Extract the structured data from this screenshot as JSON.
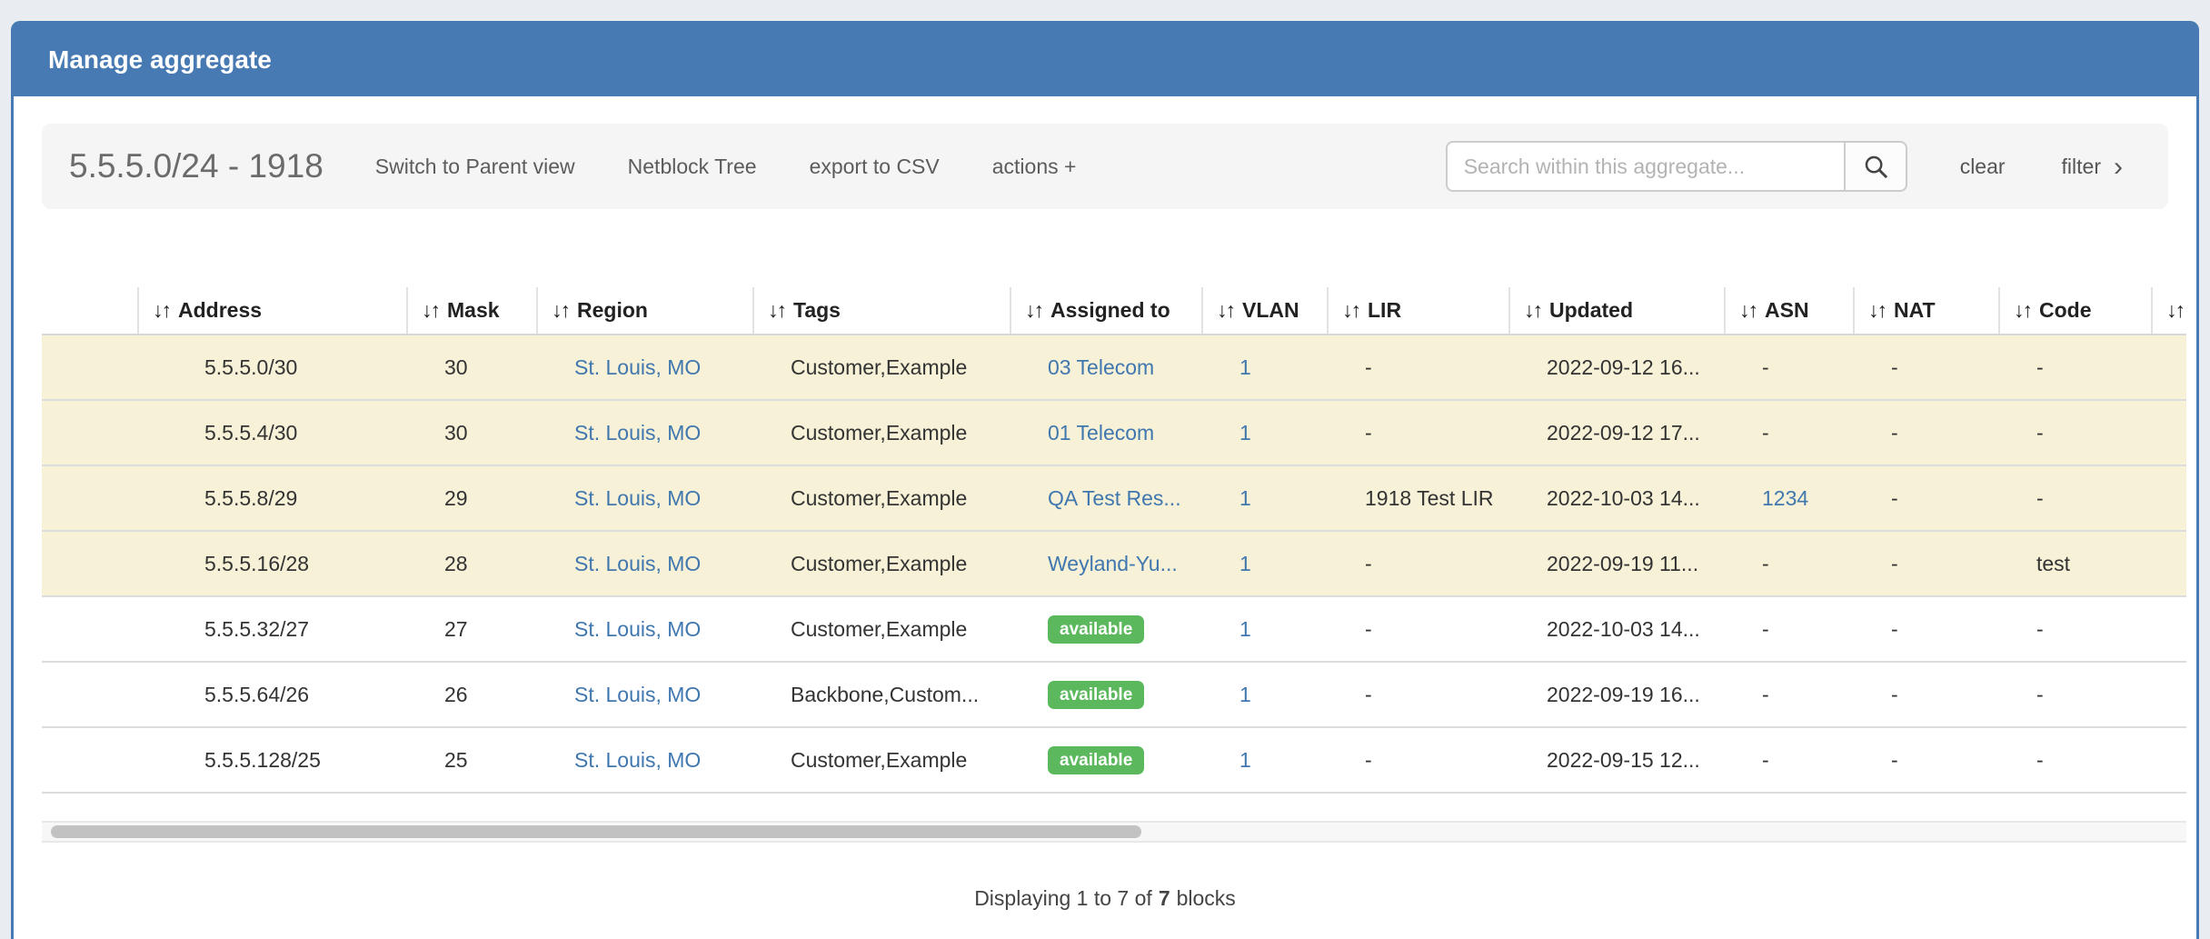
{
  "panel": {
    "title": "Manage aggregate"
  },
  "toolbar": {
    "aggregate_label": "5.5.5.0/24 - 1918",
    "links": [
      {
        "key": "switch-to-parent-view",
        "label": "Switch to Parent view"
      },
      {
        "key": "netblock-tree",
        "label": "Netblock Tree"
      },
      {
        "key": "export-to-csv",
        "label": "export to CSV"
      },
      {
        "key": "actions",
        "label": "actions +"
      }
    ],
    "search": {
      "placeholder": "Search within this aggregate...",
      "value": ""
    },
    "clear_label": "clear",
    "filter_label": "filter",
    "filter_chevron": "›"
  },
  "table": {
    "sort_icon": "↓↑",
    "columns": [
      {
        "key": "select",
        "label": "",
        "sortable": false
      },
      {
        "key": "address",
        "label": "Address",
        "sortable": true
      },
      {
        "key": "mask",
        "label": "Mask",
        "sortable": true
      },
      {
        "key": "region",
        "label": "Region",
        "sortable": true
      },
      {
        "key": "tags",
        "label": "Tags",
        "sortable": true
      },
      {
        "key": "assigned",
        "label": "Assigned to",
        "sortable": true
      },
      {
        "key": "vlan",
        "label": "VLAN",
        "sortable": true
      },
      {
        "key": "lir",
        "label": "LIR",
        "sortable": true
      },
      {
        "key": "updated",
        "label": "Updated",
        "sortable": true
      },
      {
        "key": "asn",
        "label": "ASN",
        "sortable": true
      },
      {
        "key": "nat",
        "label": "NAT",
        "sortable": true
      },
      {
        "key": "code",
        "label": "Code",
        "sortable": true
      },
      {
        "key": "overflow",
        "label": "",
        "sortable": true
      }
    ],
    "rows": [
      {
        "address": "5.5.5.0/30",
        "mask": "30",
        "region": "St. Louis, MO",
        "tags": "Customer,Example",
        "assigned": "03 Telecom",
        "assigned_type": "link",
        "vlan": "1",
        "lir": "-",
        "updated": "2022-09-12 16...",
        "asn": "-",
        "asn_type": "text",
        "nat": "-",
        "code": "-",
        "highlighted": true
      },
      {
        "address": "5.5.5.4/30",
        "mask": "30",
        "region": "St. Louis, MO",
        "tags": "Customer,Example",
        "assigned": "01 Telecom",
        "assigned_type": "link",
        "vlan": "1",
        "lir": "-",
        "updated": "2022-09-12 17...",
        "asn": "-",
        "asn_type": "text",
        "nat": "-",
        "code": "-",
        "highlighted": true
      },
      {
        "address": "5.5.5.8/29",
        "mask": "29",
        "region": "St. Louis, MO",
        "tags": "Customer,Example",
        "assigned": "QA Test Res...",
        "assigned_type": "link",
        "vlan": "1",
        "lir": "1918 Test LIR",
        "updated": "2022-10-03 14...",
        "asn": "1234",
        "asn_type": "link",
        "nat": "-",
        "code": "-",
        "highlighted": true
      },
      {
        "address": "5.5.5.16/28",
        "mask": "28",
        "region": "St. Louis, MO",
        "tags": "Customer,Example",
        "assigned": "Weyland-Yu...",
        "assigned_type": "link",
        "vlan": "1",
        "lir": "-",
        "updated": "2022-09-19 11...",
        "asn": "-",
        "asn_type": "text",
        "nat": "-",
        "code": "test",
        "highlighted": true
      },
      {
        "address": "5.5.5.32/27",
        "mask": "27",
        "region": "St. Louis, MO",
        "tags": "Customer,Example",
        "assigned": "available",
        "assigned_type": "badge",
        "vlan": "1",
        "lir": "-",
        "updated": "2022-10-03 14...",
        "asn": "-",
        "asn_type": "text",
        "nat": "-",
        "code": "-",
        "highlighted": false
      },
      {
        "address": "5.5.5.64/26",
        "mask": "26",
        "region": "St. Louis, MO",
        "tags": "Backbone,Custom...",
        "assigned": "available",
        "assigned_type": "badge",
        "vlan": "1",
        "lir": "-",
        "updated": "2022-09-19 16...",
        "asn": "-",
        "asn_type": "text",
        "nat": "-",
        "code": "-",
        "highlighted": false
      },
      {
        "address": "5.5.5.128/25",
        "mask": "25",
        "region": "St. Louis, MO",
        "tags": "Customer,Example",
        "assigned": "available",
        "assigned_type": "badge",
        "vlan": "1",
        "lir": "-",
        "updated": "2022-09-15 12...",
        "asn": "-",
        "asn_type": "text",
        "nat": "-",
        "code": "-",
        "highlighted": false
      }
    ]
  },
  "footer": {
    "prefix": "Displaying 1 to 7 of",
    "count": "7",
    "suffix": "blocks"
  },
  "colors": {
    "header_blue": "#477ab2",
    "row_highlight": "#f6f1d7",
    "badge_green": "#5cb85c",
    "link_blue": "#4077af"
  }
}
